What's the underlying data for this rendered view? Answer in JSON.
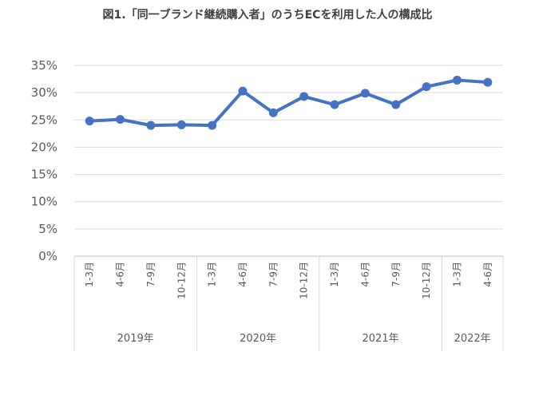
{
  "chart_data": {
    "type": "line",
    "title": "図1.「同一ブランド継続購入者」のうちECを利用した人の構成比",
    "y_unit": "%",
    "ylim": [
      0,
      35
    ],
    "yticks": [
      "0%",
      "5%",
      "10%",
      "15%",
      "20%",
      "25%",
      "30%",
      "35%"
    ],
    "grid": true,
    "legend": "none",
    "line_color": "#4472C4",
    "categories": [
      "1-3月",
      "4-6月",
      "7-9月",
      "10-12月",
      "1-3月",
      "4-6月",
      "7-9月",
      "10-12月",
      "1-3月",
      "4-6月",
      "7-9月",
      "10-12月",
      "1-3月",
      "4-6月"
    ],
    "groups": [
      {
        "label": "2019年",
        "count": 4
      },
      {
        "label": "2020年",
        "count": 4
      },
      {
        "label": "2021年",
        "count": 4
      },
      {
        "label": "2022年",
        "count": 2
      }
    ],
    "series": [
      {
        "values": [
          24.8,
          25.1,
          24.0,
          24.1,
          24.0,
          30.3,
          26.3,
          29.3,
          27.8,
          29.9,
          27.8,
          31.1,
          32.3,
          31.9
        ]
      }
    ]
  }
}
